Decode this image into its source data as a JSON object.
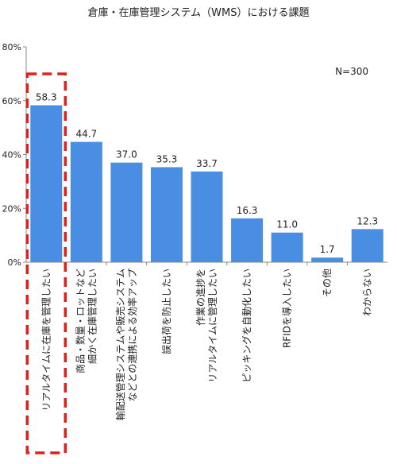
{
  "chart_data": {
    "type": "bar",
    "title": "倉庫・在庫管理システム（WMS）における課題",
    "annotation": "N=300",
    "categories": [
      [
        "リアルタイムに在庫を管理したい"
      ],
      [
        "商品・数量・ロットなど",
        "細かく在庫管理したい"
      ],
      [
        "輸配送管理システムや販売システム",
        "などとの連携による効率アップ"
      ],
      [
        "誤出荷を防止したい"
      ],
      [
        "作業の進捗を",
        "リアルタイムに管理したい"
      ],
      [
        "ピッキングを自動化したい"
      ],
      [
        "RFIDを導入したい"
      ],
      [
        "その他"
      ],
      [
        "わからない"
      ]
    ],
    "values": [
      58.3,
      44.7,
      37.0,
      35.3,
      33.7,
      16.3,
      11.0,
      1.7,
      12.3
    ],
    "value_labels": [
      "58.3",
      "44.7",
      "37.0",
      "35.3",
      "33.7",
      "16.3",
      "11.0",
      "1.7",
      "12.3"
    ],
    "ylim": [
      0,
      80
    ],
    "yticks": [
      0,
      20,
      40,
      60,
      80
    ],
    "ytick_labels": [
      "0%",
      "20%",
      "40%",
      "60%",
      "80%"
    ],
    "xlabel": "",
    "ylabel": "",
    "grid": false,
    "bar_color": "#4a8ee4",
    "highlight_index": 0,
    "highlight_color": "#e0201b"
  }
}
